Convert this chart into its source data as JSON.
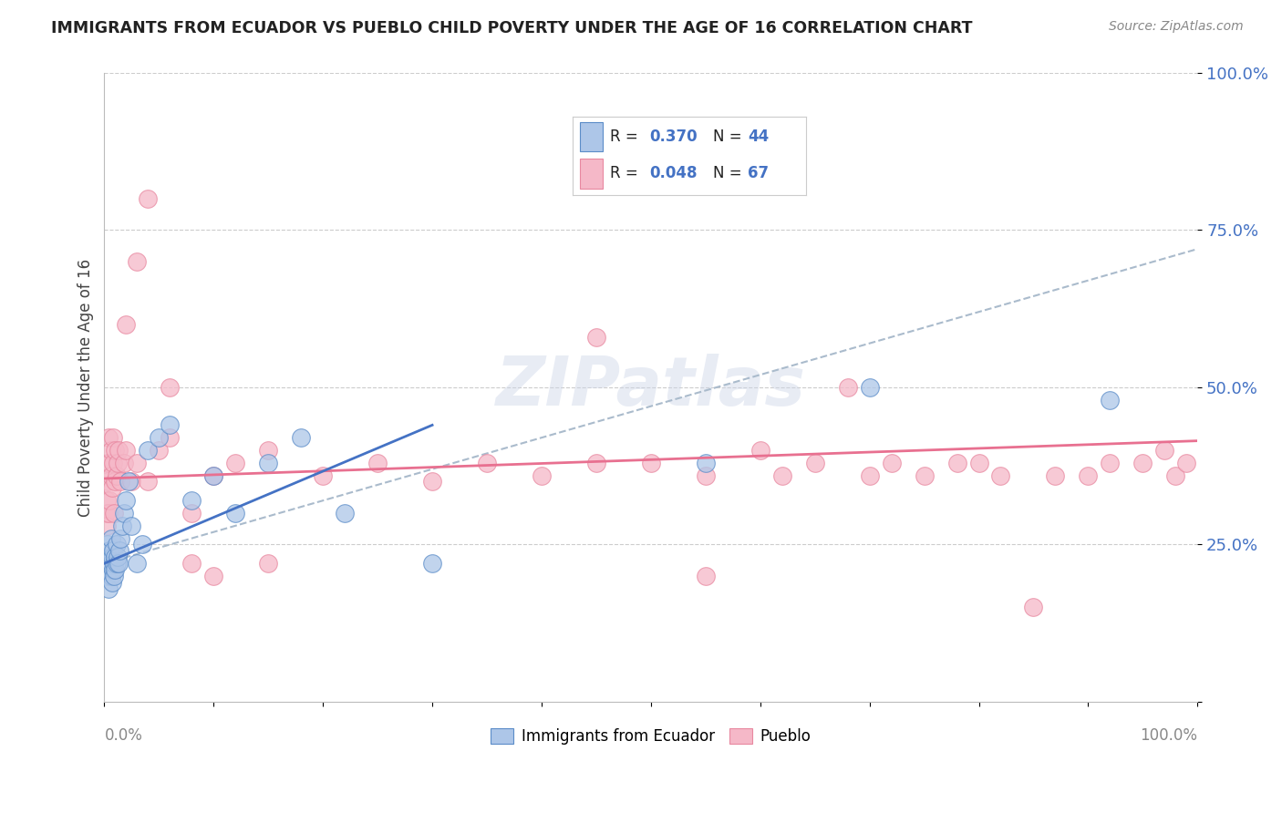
{
  "title": "IMMIGRANTS FROM ECUADOR VS PUEBLO CHILD POVERTY UNDER THE AGE OF 16 CORRELATION CHART",
  "source": "Source: ZipAtlas.com",
  "ylabel": "Child Poverty Under the Age of 16",
  "legend_blue_R": "0.370",
  "legend_blue_N": "44",
  "legend_pink_R": "0.048",
  "legend_pink_N": "67",
  "legend_label_blue": "Immigrants from Ecuador",
  "legend_label_pink": "Pueblo",
  "blue_fill": "#adc6e8",
  "blue_edge": "#5b8cc8",
  "pink_fill": "#f5b8c8",
  "pink_edge": "#e888a0",
  "blue_line": "#4472c4",
  "pink_line": "#e87090",
  "dash_line": "#aabbcc",
  "background": "#ffffff",
  "grid_color": "#cccccc",
  "ytick_color": "#4472c4",
  "xtick_color": "#888888",
  "title_color": "#222222",
  "source_color": "#888888",
  "legend_text_color": "#222222",
  "legend_value_color": "#4472c4",
  "blue_x": [
    0.002,
    0.003,
    0.003,
    0.004,
    0.004,
    0.005,
    0.005,
    0.006,
    0.006,
    0.006,
    0.007,
    0.007,
    0.008,
    0.008,
    0.009,
    0.009,
    0.01,
    0.01,
    0.011,
    0.011,
    0.012,
    0.013,
    0.014,
    0.015,
    0.016,
    0.018,
    0.02,
    0.022,
    0.025,
    0.03,
    0.035,
    0.04,
    0.05,
    0.06,
    0.08,
    0.1,
    0.12,
    0.15,
    0.18,
    0.22,
    0.3,
    0.55,
    0.7,
    0.92
  ],
  "blue_y": [
    0.2,
    0.22,
    0.25,
    0.18,
    0.23,
    0.21,
    0.24,
    0.2,
    0.22,
    0.26,
    0.19,
    0.23,
    0.21,
    0.24,
    0.2,
    0.22,
    0.21,
    0.23,
    0.22,
    0.25,
    0.23,
    0.22,
    0.24,
    0.26,
    0.28,
    0.3,
    0.32,
    0.35,
    0.28,
    0.22,
    0.25,
    0.4,
    0.42,
    0.44,
    0.32,
    0.36,
    0.3,
    0.38,
    0.42,
    0.3,
    0.22,
    0.38,
    0.5,
    0.48
  ],
  "pink_x": [
    0.001,
    0.002,
    0.002,
    0.003,
    0.003,
    0.004,
    0.004,
    0.005,
    0.005,
    0.006,
    0.006,
    0.007,
    0.008,
    0.008,
    0.009,
    0.01,
    0.01,
    0.011,
    0.012,
    0.013,
    0.015,
    0.018,
    0.02,
    0.025,
    0.03,
    0.04,
    0.05,
    0.06,
    0.08,
    0.1,
    0.12,
    0.15,
    0.2,
    0.25,
    0.3,
    0.35,
    0.4,
    0.45,
    0.5,
    0.55,
    0.6,
    0.62,
    0.65,
    0.68,
    0.7,
    0.72,
    0.75,
    0.78,
    0.8,
    0.82,
    0.85,
    0.87,
    0.9,
    0.92,
    0.95,
    0.97,
    0.98,
    0.99,
    0.45,
    0.55,
    0.08,
    0.1,
    0.15,
    0.02,
    0.03,
    0.04,
    0.06
  ],
  "pink_y": [
    0.3,
    0.28,
    0.32,
    0.35,
    0.38,
    0.3,
    0.42,
    0.32,
    0.38,
    0.4,
    0.36,
    0.34,
    0.38,
    0.42,
    0.3,
    0.35,
    0.4,
    0.36,
    0.38,
    0.4,
    0.35,
    0.38,
    0.4,
    0.35,
    0.38,
    0.35,
    0.4,
    0.42,
    0.3,
    0.36,
    0.38,
    0.4,
    0.36,
    0.38,
    0.35,
    0.38,
    0.36,
    0.38,
    0.38,
    0.36,
    0.4,
    0.36,
    0.38,
    0.5,
    0.36,
    0.38,
    0.36,
    0.38,
    0.38,
    0.36,
    0.15,
    0.36,
    0.36,
    0.38,
    0.38,
    0.4,
    0.36,
    0.38,
    0.58,
    0.2,
    0.22,
    0.2,
    0.22,
    0.6,
    0.7,
    0.8,
    0.5
  ],
  "blue_trend_x0": 0.0,
  "blue_trend_x1": 0.3,
  "blue_trend_y0": 0.22,
  "blue_trend_y1": 0.44,
  "pink_trend_x0": 0.0,
  "pink_trend_x1": 1.0,
  "pink_trend_y0": 0.355,
  "pink_trend_y1": 0.415,
  "dash_trend_x0": 0.0,
  "dash_trend_x1": 1.0,
  "dash_trend_y0": 0.22,
  "dash_trend_y1": 0.72,
  "xlim": [
    0.0,
    1.0
  ],
  "ylim": [
    0.0,
    1.0
  ],
  "yticks": [
    0.0,
    0.25,
    0.5,
    0.75,
    1.0
  ],
  "ytick_labels": [
    "",
    "25.0%",
    "50.0%",
    "75.0%",
    "100.0%"
  ]
}
